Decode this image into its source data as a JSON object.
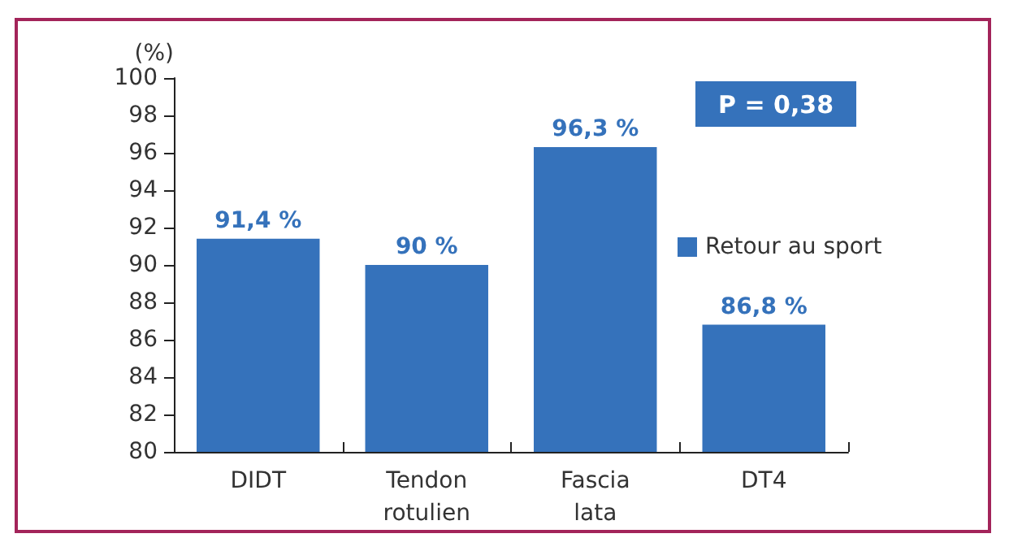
{
  "chart_data": {
    "type": "bar",
    "ylabel": "(%)",
    "categories": [
      "DIDT",
      "Tendon\nrotulien",
      "Fascia\nlata",
      "DT4"
    ],
    "series": [
      {
        "name": "Retour au sport",
        "color": "#3572bb",
        "values": [
          91.4,
          90,
          96.3,
          86.8
        ],
        "value_labels": [
          "91,4 %",
          "90 %",
          "96,3 %",
          "86,8 %"
        ]
      }
    ],
    "ylim": [
      80,
      100
    ],
    "yticks": [
      80,
      82,
      84,
      86,
      88,
      90,
      92,
      94,
      96,
      98,
      100
    ],
    "annotations": [
      "P = 0,38"
    ],
    "grid": false,
    "legend": "right"
  }
}
